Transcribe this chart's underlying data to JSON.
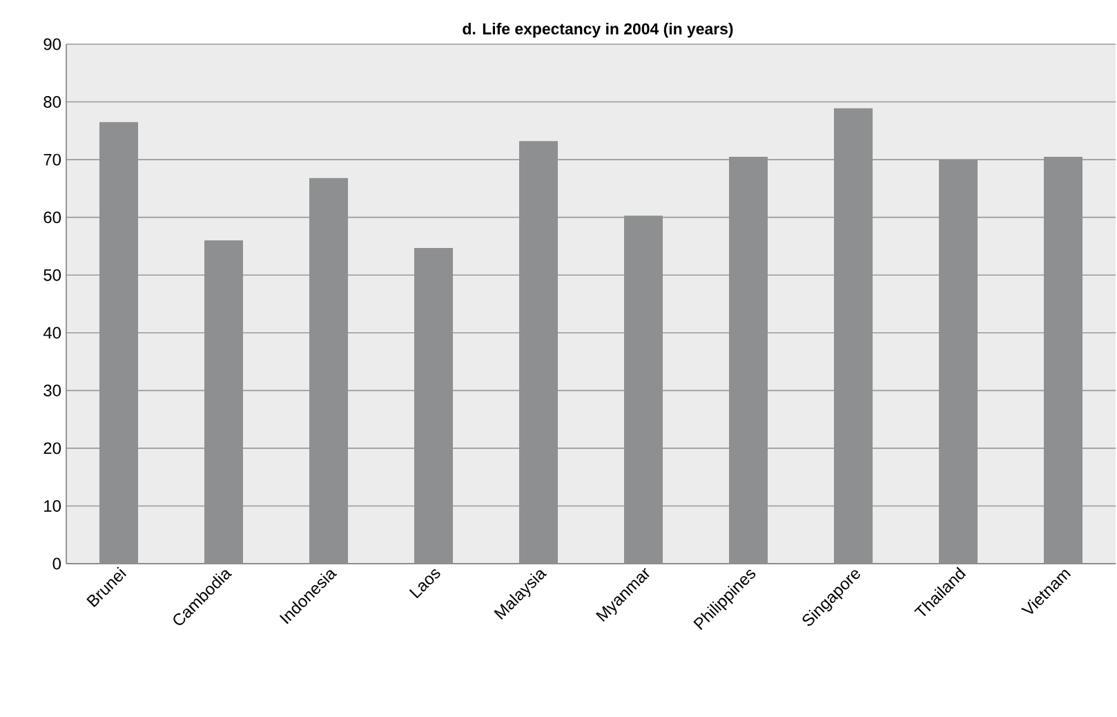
{
  "chart_data": {
    "type": "bar",
    "title": "d. Life expectancy in 2004 (in years)",
    "categories": [
      "Brunei",
      "Cambodia",
      "Indonesia",
      "Laos",
      "Malaysia",
      "Myanmar",
      "Philippines",
      "Singapore",
      "Thailand",
      "Vietnam"
    ],
    "values": [
      76.5,
      56,
      66.8,
      54.7,
      73.2,
      60.3,
      70.5,
      78.9,
      70,
      70.5
    ],
    "color": "#8e8f91",
    "ylim": [
      0,
      90
    ],
    "yticks": [
      0,
      10,
      20,
      30,
      40,
      50,
      60,
      70,
      80,
      90
    ],
    "grid": "y"
  }
}
